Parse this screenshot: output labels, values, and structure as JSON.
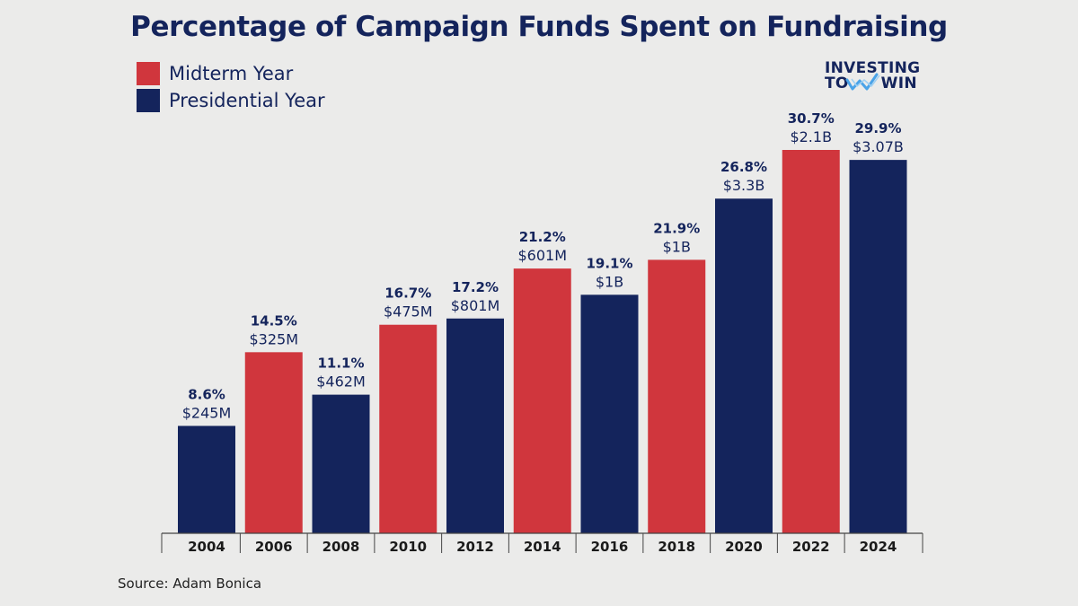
{
  "colors": {
    "midterm": "#d0363d",
    "presidential": "#14245c",
    "text": "#14245c",
    "background": "#ebebea"
  },
  "logo": {
    "line1": "INVESTING",
    "line2_a": "TO",
    "line2_b": "WIN",
    "icon": "checkmark-icon"
  },
  "source": "Source: Adam Bonica",
  "chart_data": {
    "type": "bar",
    "title": "Percentage of Campaign Funds Spent on Fundraising",
    "xlabel": "",
    "ylabel": "",
    "ylim": [
      0,
      32
    ],
    "legend": [
      {
        "key": "midterm",
        "label": "Midterm Year"
      },
      {
        "key": "presidential",
        "label": "Presidential Year"
      }
    ],
    "categories": [
      "2004",
      "2006",
      "2008",
      "2010",
      "2012",
      "2014",
      "2016",
      "2018",
      "2020",
      "2022",
      "2024"
    ],
    "values": [
      8.6,
      14.5,
      11.1,
      16.7,
      17.2,
      21.2,
      19.1,
      21.9,
      26.8,
      30.7,
      29.9
    ],
    "percent_labels": [
      "8.6%",
      "14.5%",
      "11.1%",
      "16.7%",
      "17.2%",
      "21.2%",
      "19.1%",
      "21.9%",
      "26.8%",
      "30.7%",
      "29.9%"
    ],
    "dollar_labels": [
      "$245M",
      "$325M",
      "$462M",
      "$475M",
      "$801M",
      "$601M",
      "$1B",
      "$1B",
      "$3.3B",
      "$2.1B",
      "$3.07B"
    ],
    "year_type": [
      "presidential",
      "midterm",
      "presidential",
      "midterm",
      "presidential",
      "midterm",
      "presidential",
      "midterm",
      "presidential",
      "midterm",
      "presidential"
    ]
  }
}
